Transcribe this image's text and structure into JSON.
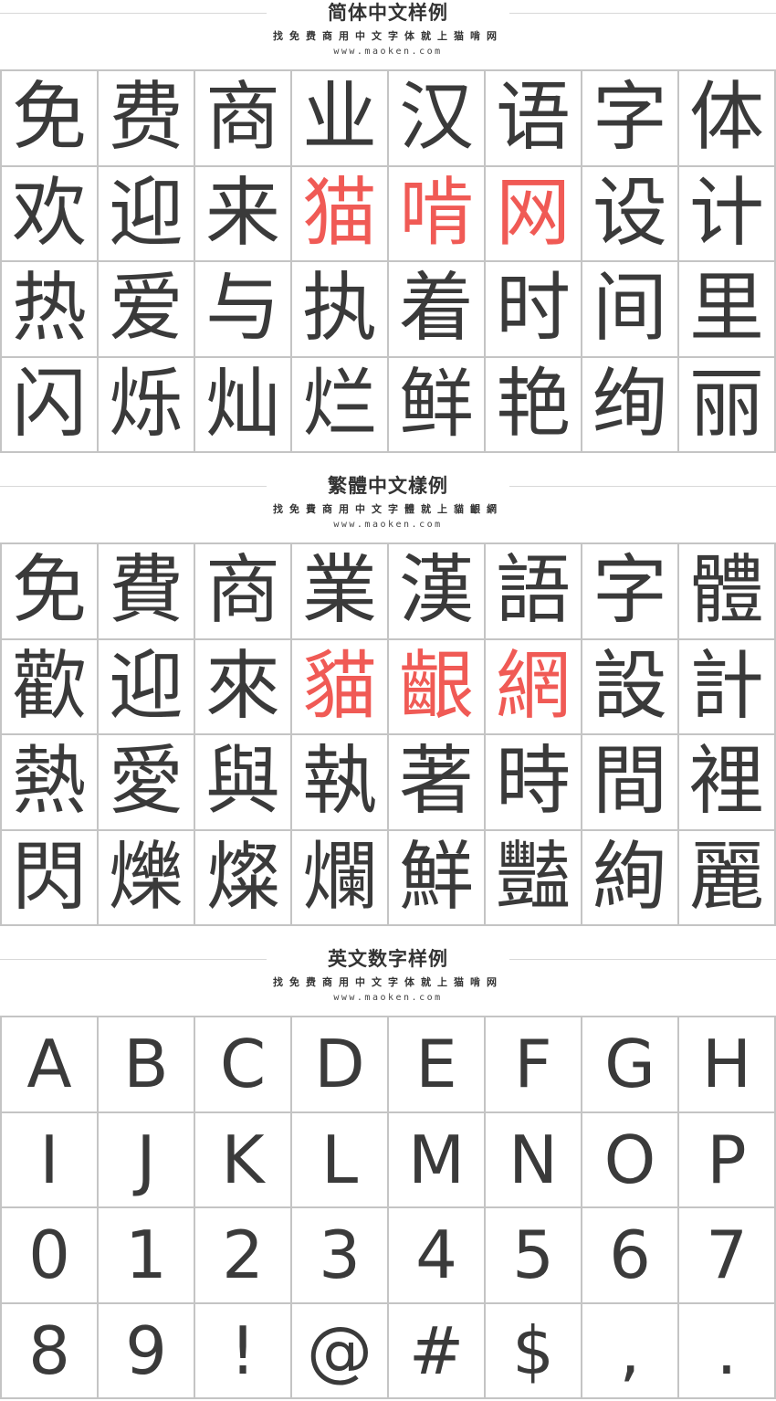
{
  "sections": [
    {
      "title": "简体中文样例",
      "subtitle": "找免费商用中文字体就上猫啃网",
      "url": "www.maoken.com",
      "rows": [
        [
          "免",
          "费",
          "商",
          "业",
          "汉",
          "语",
          "字",
          "体"
        ],
        [
          "欢",
          "迎",
          "来",
          "猫",
          "啃",
          "网",
          "设",
          "计"
        ],
        [
          "热",
          "爱",
          "与",
          "执",
          "着",
          "时",
          "间",
          "里"
        ],
        [
          "闪",
          "烁",
          "灿",
          "烂",
          "鲜",
          "艳",
          "绚",
          "丽"
        ]
      ],
      "highlight_chars": [
        "猫",
        "啃",
        "网"
      ]
    },
    {
      "title": "繁體中文樣例",
      "subtitle": "找免費商用中文字體就上貓齦網",
      "url": "www.maoken.com",
      "rows": [
        [
          "免",
          "費",
          "商",
          "業",
          "漢",
          "語",
          "字",
          "體"
        ],
        [
          "歡",
          "迎",
          "來",
          "貓",
          "齦",
          "網",
          "設",
          "計"
        ],
        [
          "熱",
          "愛",
          "與",
          "執",
          "著",
          "時",
          "間",
          "裡"
        ],
        [
          "閃",
          "爍",
          "燦",
          "爛",
          "鮮",
          "豔",
          "絢",
          "麗"
        ]
      ],
      "highlight_chars": [
        "貓",
        "齦",
        "網"
      ]
    },
    {
      "title": "英文数字样例",
      "subtitle": "找免费商用中文字体就上猫啃网",
      "url": "www.maoken.com",
      "rows": [
        [
          "A",
          "B",
          "C",
          "D",
          "E",
          "F",
          "G",
          "H"
        ],
        [
          "I",
          "J",
          "K",
          "L",
          "M",
          "N",
          "O",
          "P"
        ],
        [
          "0",
          "1",
          "2",
          "3",
          "4",
          "5",
          "6",
          "7"
        ],
        [
          "8",
          "9",
          "!",
          "@",
          "#",
          "$",
          ",",
          "."
        ]
      ],
      "highlight_chars": []
    }
  ],
  "colors": {
    "text": "#3a3a3a",
    "highlight": "#f05a55",
    "grid": "#c4c4c4"
  }
}
